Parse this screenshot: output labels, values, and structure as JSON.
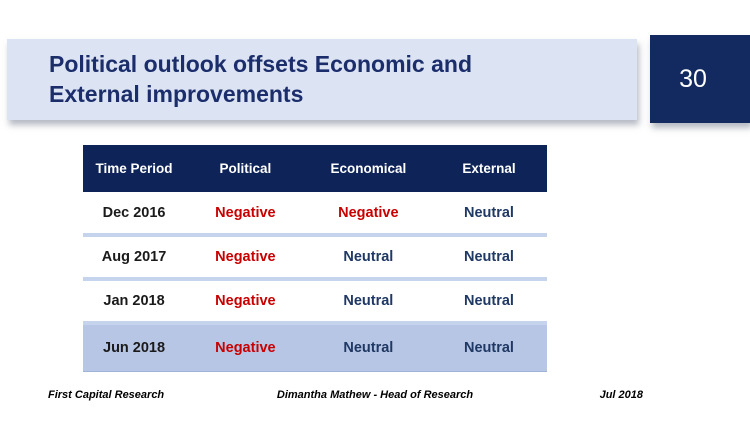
{
  "slide": {
    "title": "Political outlook offsets Economic and External improvements",
    "page_number": "30"
  },
  "table": {
    "columns": [
      "Time Period",
      "Political",
      "Economical",
      "External"
    ],
    "rows": [
      {
        "cells": [
          "Dec 2016",
          "Negative",
          "Negative",
          "Neutral"
        ],
        "highlight": false
      },
      {
        "cells": [
          "Aug 2017",
          "Negative",
          "Neutral",
          "Neutral"
        ],
        "highlight": false
      },
      {
        "cells": [
          "Jan 2018",
          "Negative",
          "Neutral",
          "Neutral"
        ],
        "highlight": false
      },
      {
        "cells": [
          "Jun 2018",
          "Negative",
          "Neutral",
          "Neutral"
        ],
        "highlight": true
      }
    ]
  },
  "footer": {
    "left": "First Capital Research",
    "center": "Dimantha Mathew - Head of Research",
    "right": "Jul 2018"
  },
  "colors": {
    "banner_bg": "#dce3f3",
    "title_color": "#1b2e6b",
    "navy_box": "#132a61",
    "navy_header": "#0e2358",
    "red": "#c80000",
    "neutral": "#1f3864",
    "highlight_row": "#b7c6e4",
    "separator": "#c6d3ec"
  }
}
